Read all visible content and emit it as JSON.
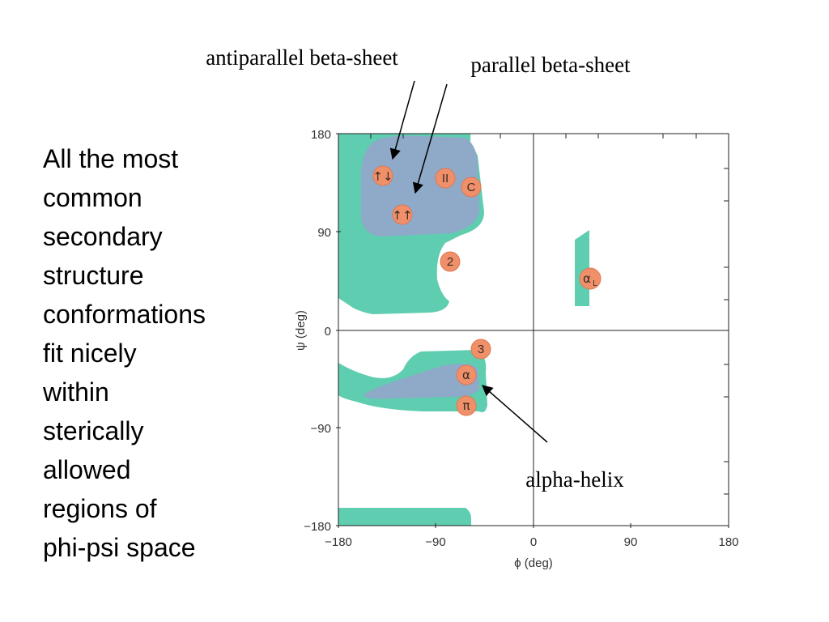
{
  "slide": {
    "body_lines": [
      "All the most",
      "common",
      "secondary",
      "structure",
      "conformations",
      "fit nicely",
      "within",
      "sterically",
      "allowed",
      "regions of",
      "phi-psi space"
    ]
  },
  "annotations": {
    "antiparallel": "antiparallel beta-sheet",
    "parallel": "parallel beta-sheet",
    "alpha_helix": "alpha-helix"
  },
  "plot": {
    "x_axis_label": "ϕ (deg)",
    "y_axis_label": "ψ (deg)",
    "x_ticks": [
      "−180",
      "−90",
      "0",
      "90",
      "180"
    ],
    "y_ticks": [
      "180",
      "90",
      "0",
      "−90",
      "−180"
    ],
    "colors": {
      "allowed": "#5fcdb0",
      "favored": "#8fa9c9",
      "marker": "#f0906a"
    },
    "markers": {
      "antiparallel": "↑↓",
      "parallel": "↑↑",
      "polyproline_II": "II",
      "collagen": "C",
      "two_ribbon": "2",
      "helix_3_10": "3",
      "alpha": "α",
      "pi": "π",
      "left_alpha": "α",
      "left_alpha_sub": "L"
    }
  }
}
